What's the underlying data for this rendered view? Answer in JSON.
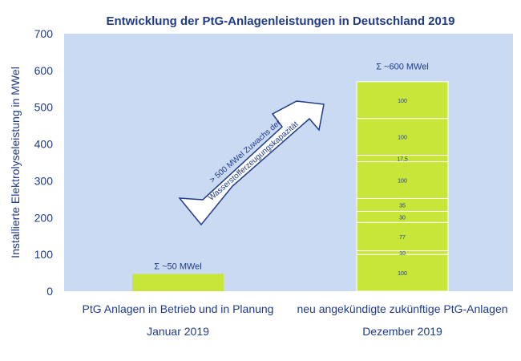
{
  "chart_data": {
    "type": "bar",
    "title": "Entwicklung der PtG-Anlagenleistungen in Deutschland 2019",
    "ylabel": "Installierte Elektrolyseleistung in MWel",
    "ylim": [
      0,
      700
    ],
    "yticks": [
      0,
      100,
      200,
      300,
      400,
      500,
      600,
      700
    ],
    "categories": [
      {
        "label": "PtG Anlagen in Betrieb und in Planung",
        "sublabel": "Januar 2019",
        "sum_label": "Σ ~50 MWel",
        "total": 47,
        "segments": []
      },
      {
        "label": "neu angekündigte zukünftige PtG-Anlagen",
        "sublabel": "Dezember 2019",
        "sum_label": "Σ ~600 MWel",
        "total": 589.5,
        "segments": [
          100,
          10,
          77,
          30,
          35,
          100,
          17.5,
          100,
          100
        ],
        "segment_labels": [
          "100",
          "10",
          "77",
          "30",
          "35",
          "100",
          "17,5",
          "100",
          "100"
        ]
      }
    ],
    "annotation": {
      "line1": "> 500 MWel Zuwachs der",
      "line2": "Wasserstofferzeugungskapazität"
    },
    "colors": {
      "background": "#c9daf2",
      "bar": "#c8e63a",
      "text": "#1f3a8a",
      "separator": "#ffffff",
      "arrow_fill": "#ffffff",
      "arrow_stroke": "#1f3a8a"
    }
  }
}
